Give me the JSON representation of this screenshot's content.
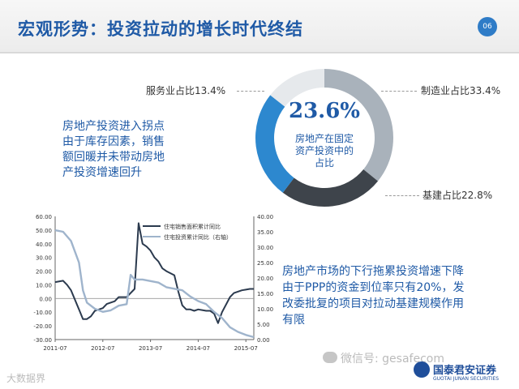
{
  "header": {
    "title": "宏观形势：投资拉动的增长时代终结",
    "page_number": "06"
  },
  "donut": {
    "center_value": "23.6%",
    "center_text": [
      "房地产在固定",
      "资产投资中的",
      "占比"
    ],
    "labels": {
      "services": "服务业占比13.4%",
      "manufacturing": "制造业占比33.4%",
      "infrastructure": "基建占比22.8%"
    },
    "segments": [
      {
        "name": "制造业",
        "value": 33.4,
        "color": "#a9b2bb"
      },
      {
        "name": "基建",
        "value": 22.8,
        "color": "#3e444b"
      },
      {
        "name": "房地产",
        "value": 23.6,
        "color": "#2d88cf"
      },
      {
        "name": "服务业",
        "value": 13.4,
        "color": "#e6e9ec"
      }
    ]
  },
  "text_left": [
    "房地产投资进入拐点",
    "由于库存因素，销售",
    "额回暖并未带动房地",
    "产投资增速回升"
  ],
  "text_right": [
    "房地产市场的下行拖累投资增速下降",
    "由于PPP的资金到位率只有20%，发",
    "改委批复的项目对拉动基建规模作用",
    "有限"
  ],
  "watermark": {
    "wechat": "微信号: gesafecom",
    "brand_main": "国泰君安证券",
    "brand_sub": "GUOTAI JUNAN SECURITIES",
    "bottom_left": "大数据界"
  },
  "chart_data": {
    "type": "line",
    "title": "",
    "xlabel": "",
    "ylabel": "",
    "ylim_left": [
      -30,
      60
    ],
    "ylim_right": [
      0,
      40
    ],
    "x_tick_labels": [
      "2011-07",
      "2012-07",
      "2013-07",
      "2014-07",
      "2015-07"
    ],
    "x_tick_positions": [
      0,
      12,
      24,
      36,
      48
    ],
    "x_range": [
      0,
      50
    ],
    "y_left_ticks": [
      "60.00",
      "50.00",
      "40.00",
      "30.00",
      "20.00",
      "10.00",
      "0.00",
      "-10.00",
      "-20.00",
      "-30.00"
    ],
    "y_right_ticks": [
      "40.00",
      "35.00",
      "30.00",
      "25.00",
      "20.00",
      "15.00",
      "10.00",
      "5.00",
      "0.00"
    ],
    "series": [
      {
        "name": "住宅销售面积累计同比",
        "axis": "left",
        "color": "#2b3a4e",
        "x": [
          0,
          2,
          3,
          4,
          6,
          7,
          8,
          9,
          10,
          12,
          13,
          15,
          16,
          18,
          20,
          21,
          22,
          23,
          24,
          25,
          26,
          27,
          28,
          30,
          31,
          32,
          33,
          34,
          35,
          36,
          38,
          39,
          40,
          41,
          42,
          44,
          45,
          47,
          48,
          49,
          50
        ],
        "values": [
          12,
          13,
          10,
          6,
          -8,
          -15,
          -15,
          -13,
          -9,
          -7,
          -4,
          -2,
          1,
          1,
          7,
          55,
          40,
          38,
          35,
          30,
          27,
          22,
          20,
          17,
          5,
          -5,
          -8,
          -8,
          -9,
          -8,
          -9,
          -9,
          -11,
          -18,
          -10,
          1,
          4,
          6,
          6.5,
          7,
          7
        ]
      },
      {
        "name": "住宅投资累计同比（右轴）",
        "axis": "right",
        "color": "#9fb4cc",
        "x": [
          0,
          2,
          4,
          6,
          7,
          8,
          10,
          12,
          14,
          16,
          18,
          19,
          20,
          22,
          24,
          26,
          28,
          30,
          32,
          34,
          36,
          38,
          40,
          42,
          44,
          46,
          48,
          50
        ],
        "values": [
          35.5,
          35,
          32,
          25,
          16,
          12,
          10,
          9,
          9.5,
          11,
          11.5,
          21,
          19.5,
          19.5,
          19,
          18.5,
          17,
          16.5,
          16,
          14,
          12.5,
          11.5,
          9,
          7,
          4,
          2.5,
          1.5,
          0.8
        ]
      }
    ],
    "legend_position": "top-right",
    "grid": false
  }
}
